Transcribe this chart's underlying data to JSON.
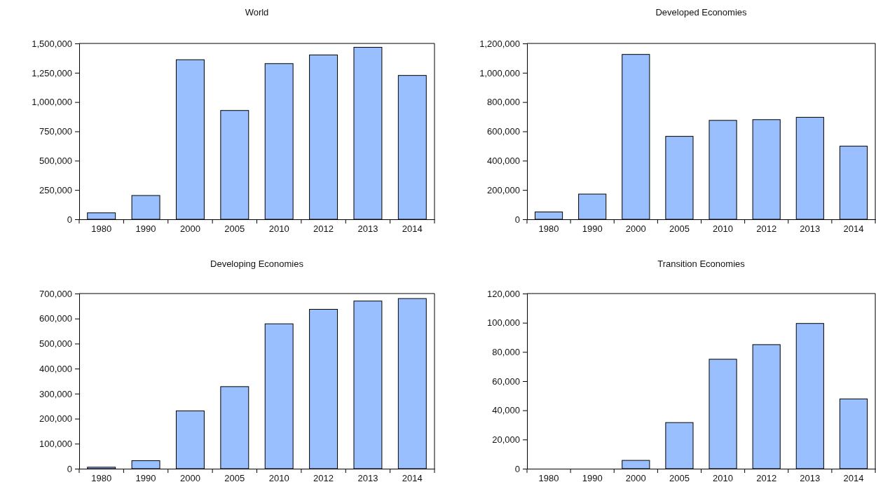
{
  "chart_data": [
    {
      "type": "bar",
      "title": "World",
      "categories": [
        "1980",
        "1990",
        "2000",
        "2005",
        "2010",
        "2012",
        "2013",
        "2014"
      ],
      "values": [
        55000,
        203000,
        1361000,
        928000,
        1328000,
        1402000,
        1467000,
        1227000
      ],
      "color": "#99bfff",
      "ylim": [
        0,
        1500000
      ],
      "yticks": [
        {
          "value": 0,
          "label": "0"
        },
        {
          "value": 250000,
          "label": "250,000"
        },
        {
          "value": 500000,
          "label": "500,000"
        },
        {
          "value": 750000,
          "label": "750,000"
        },
        {
          "value": 1000000,
          "label": "1,000,000"
        },
        {
          "value": 1250000,
          "label": "1,250,000"
        },
        {
          "value": 1500000,
          "label": "1,500,000"
        }
      ]
    },
    {
      "type": "bar",
      "title": "Developed Economies",
      "categories": [
        "1980",
        "1990",
        "2000",
        "2005",
        "2010",
        "2012",
        "2013",
        "2014"
      ],
      "values": [
        50000,
        172000,
        1125000,
        566000,
        675000,
        680000,
        696000,
        499000
      ],
      "color": "#99bfff",
      "ylim": [
        0,
        1200000
      ],
      "yticks": [
        {
          "value": 0,
          "label": "0"
        },
        {
          "value": 200000,
          "label": "200,000"
        },
        {
          "value": 400000,
          "label": "400,000"
        },
        {
          "value": 600000,
          "label": "600,000"
        },
        {
          "value": 800000,
          "label": "800,000"
        },
        {
          "value": 1000000,
          "label": "1,000,000"
        },
        {
          "value": 1200000,
          "label": "1,200,000"
        }
      ]
    },
    {
      "type": "bar",
      "title": "Developing Economies",
      "categories": [
        "1980",
        "1990",
        "2000",
        "2005",
        "2010",
        "2012",
        "2013",
        "2014"
      ],
      "values": [
        6000,
        32000,
        231000,
        328000,
        579000,
        637000,
        670000,
        680000
      ],
      "color": "#99bfff",
      "ylim": [
        0,
        700000
      ],
      "yticks": [
        {
          "value": 0,
          "label": "0"
        },
        {
          "value": 100000,
          "label": "100,000"
        },
        {
          "value": 200000,
          "label": "200,000"
        },
        {
          "value": 300000,
          "label": "300,000"
        },
        {
          "value": 400000,
          "label": "400,000"
        },
        {
          "value": 500000,
          "label": "500,000"
        },
        {
          "value": 600000,
          "label": "600,000"
        },
        {
          "value": 700000,
          "label": "700,000"
        }
      ]
    },
    {
      "type": "bar",
      "title": "Transition Economies",
      "categories": [
        "1980",
        "1990",
        "2000",
        "2005",
        "2010",
        "2012",
        "2013",
        "2014"
      ],
      "values": [
        0,
        0,
        5700,
        31600,
        75000,
        85000,
        99500,
        47800
      ],
      "color": "#99bfff",
      "ylim": [
        0,
        120000
      ],
      "yticks": [
        {
          "value": 0,
          "label": "0"
        },
        {
          "value": 20000,
          "label": "20,000"
        },
        {
          "value": 40000,
          "label": "40,000"
        },
        {
          "value": 60000,
          "label": "60,000"
        },
        {
          "value": 80000,
          "label": "80,000"
        },
        {
          "value": 100000,
          "label": "100,000"
        },
        {
          "value": 120000,
          "label": "120,000"
        }
      ]
    }
  ]
}
